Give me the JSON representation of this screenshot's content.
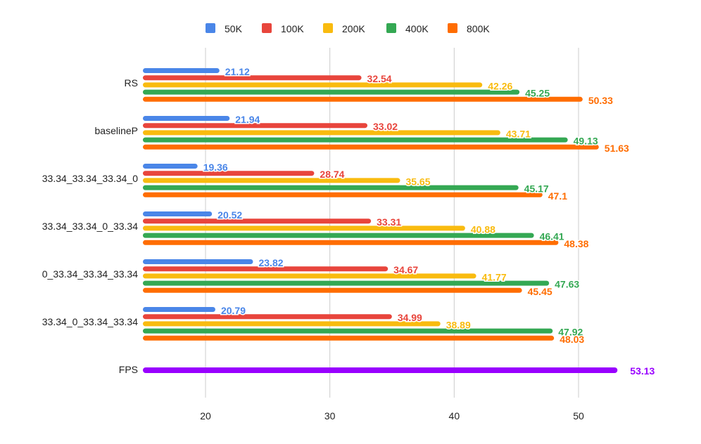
{
  "chart_data": {
    "type": "bar",
    "orientation": "horizontal",
    "title": "",
    "xlabel": "",
    "ylabel": "",
    "xlim": [
      15,
      55
    ],
    "xticks": [
      20,
      30,
      40,
      50
    ],
    "grid": true,
    "legend_position": "top-center",
    "categories": [
      "RS",
      "baselineP",
      "33.34_33.34_33.34_0",
      "33.34_33.34_0_33.34",
      "0_33.34_33.34_33.34",
      "33.34_0_33.34_33.34"
    ],
    "series": [
      {
        "name": "50K",
        "color": "#4a86e8",
        "values": [
          21.12,
          21.94,
          19.36,
          20.52,
          23.82,
          20.79
        ]
      },
      {
        "name": "100K",
        "color": "#e8453c",
        "values": [
          32.54,
          33.02,
          28.74,
          33.31,
          34.67,
          34.99
        ]
      },
      {
        "name": "200K",
        "color": "#f9bb0f",
        "values": [
          42.26,
          43.71,
          35.65,
          40.88,
          41.77,
          38.89
        ]
      },
      {
        "name": "400K",
        "color": "#34a853",
        "values": [
          45.25,
          49.13,
          45.17,
          46.41,
          47.63,
          47.92
        ]
      },
      {
        "name": "800K",
        "color": "#ff6d01",
        "values": [
          50.33,
          51.63,
          47.1,
          48.38,
          45.45,
          48.03
        ]
      }
    ],
    "extra_bar": {
      "label": "FPS",
      "value": 53.13,
      "color": "#9900ff"
    }
  }
}
